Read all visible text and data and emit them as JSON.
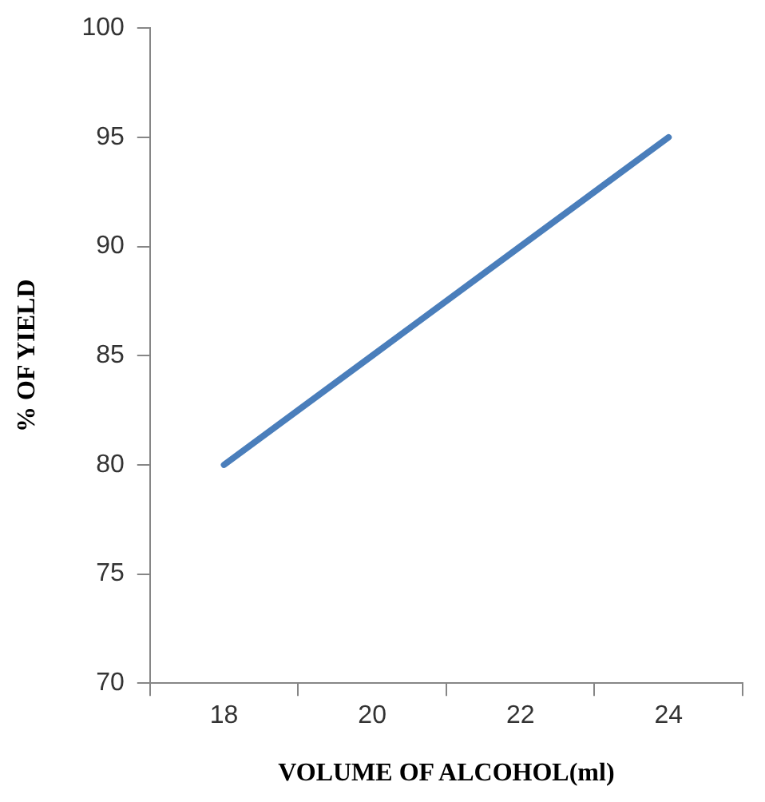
{
  "chart_data": {
    "type": "line",
    "xlabel": "VOLUME OF ALCOHOL(ml)",
    "ylabel": "% OF YIELD",
    "categories": [
      "18",
      "20",
      "22",
      "24"
    ],
    "series": [
      {
        "color": "#4a7ebb",
        "values": [
          80,
          85,
          90,
          95
        ]
      }
    ],
    "ylim": [
      70,
      100
    ],
    "yticks": [
      70,
      75,
      80,
      85,
      90,
      95,
      100
    ],
    "grid": false,
    "legend": false,
    "marker": "none"
  }
}
